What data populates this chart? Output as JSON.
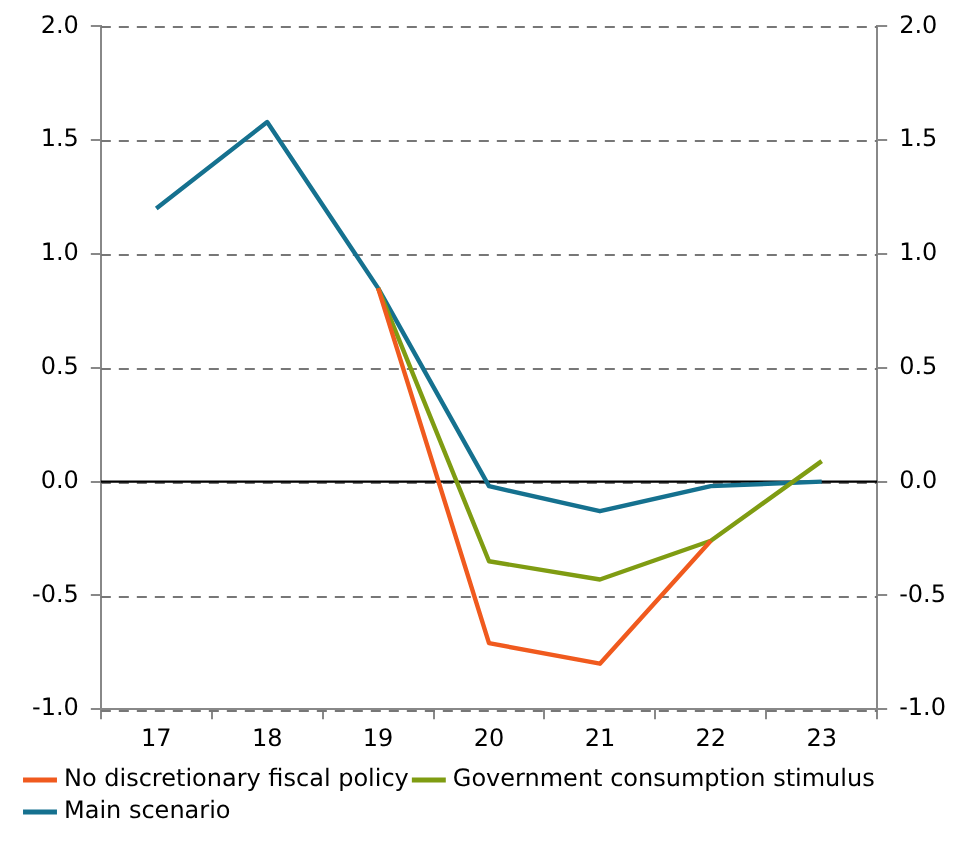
{
  "chart_data": {
    "type": "line",
    "categories": [
      "17",
      "18",
      "19",
      "20",
      "21",
      "22",
      "23"
    ],
    "series": [
      {
        "name": "No discretionary fiscal policy",
        "color": "#f05a1e",
        "values": [
          null,
          null,
          0.85,
          -0.71,
          -0.8,
          -0.26,
          null
        ]
      },
      {
        "name": "Government consumption stimulus",
        "color": "#7f9c12",
        "values": [
          null,
          null,
          0.85,
          -0.35,
          -0.43,
          -0.26,
          0.09
        ]
      },
      {
        "name": "Main scenario",
        "color": "#15718f",
        "values": [
          1.2,
          1.58,
          0.85,
          -0.02,
          -0.13,
          -0.02,
          0.0
        ]
      }
    ],
    "ylim": [
      -1,
      2
    ],
    "yticks": [
      {
        "value": -1,
        "label": "-1.0"
      },
      {
        "value": -0.5,
        "label": "-0.5"
      },
      {
        "value": 0,
        "label": "0.0"
      },
      {
        "value": 0.5,
        "label": "0.5"
      },
      {
        "value": 1,
        "label": "1.0"
      },
      {
        "value": 1.5,
        "label": "1.5"
      },
      {
        "value": 2,
        "label": "2.0"
      }
    ],
    "y2lim": [
      -1,
      2
    ],
    "y2ticks": [
      {
        "value": -1,
        "label": "-1.0"
      },
      {
        "value": -0.5,
        "label": "-0.5"
      },
      {
        "value": 0,
        "label": "0.0"
      },
      {
        "value": 0.5,
        "label": "0.5"
      },
      {
        "value": 1,
        "label": "1.0"
      },
      {
        "value": 1.5,
        "label": "1.5"
      },
      {
        "value": 2,
        "label": "2.0"
      }
    ],
    "ref_lines": [
      {
        "axis": "y",
        "value": 0,
        "color": "#000000"
      }
    ],
    "grid": "y",
    "legend": "bottom",
    "marker": "none",
    "line_style": "solid"
  }
}
